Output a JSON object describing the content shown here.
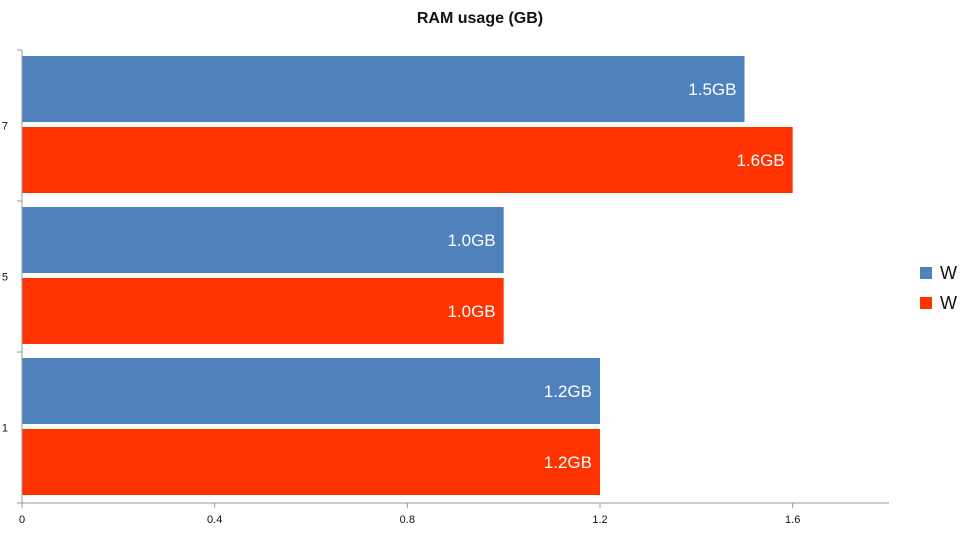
{
  "chart_data": {
    "type": "bar",
    "orientation": "horizontal",
    "title": "RAM usage (GB)",
    "xlabel": "",
    "ylabel": "",
    "categories": [
      "7",
      "5",
      "1"
    ],
    "series": [
      {
        "name": "W",
        "color": "#4f81bd",
        "values": [
          1.5,
          1.0,
          1.2
        ],
        "data_labels": [
          "1.5GB",
          "1.0GB",
          "1.2GB"
        ]
      },
      {
        "name": "W",
        "color": "#ff3300",
        "values": [
          1.6,
          1.0,
          1.2
        ],
        "data_labels": [
          "1.6GB",
          "1.0GB",
          "1.2GB"
        ]
      }
    ],
    "xlim": [
      0,
      1.8
    ],
    "x_ticks": [
      "0",
      "0.4",
      "0.8",
      "1.2",
      "1.6"
    ],
    "x_tick_values": [
      0,
      0.4,
      0.8,
      1.2,
      1.6
    ],
    "grid": false,
    "legend_position": "right"
  }
}
